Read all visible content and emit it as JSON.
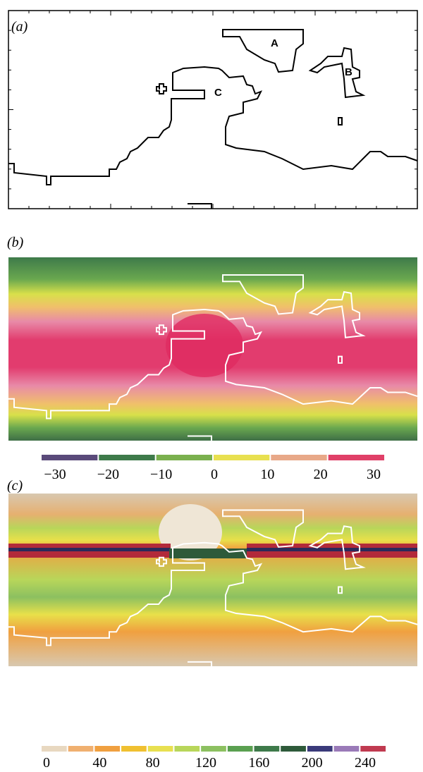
{
  "panels": [
    {
      "label": "(a)",
      "regions": [
        "A",
        "B",
        "C"
      ]
    },
    {
      "label": "(b)",
      "colorbar": {
        "ticks": [
          "−30",
          "−20",
          "−10",
          "0",
          "10",
          "20",
          "30"
        ]
      }
    },
    {
      "label": "(c)",
      "colorbar": {
        "ticks": [
          0,
          40,
          80,
          120,
          160,
          200,
          240
        ]
      }
    }
  ]
}
